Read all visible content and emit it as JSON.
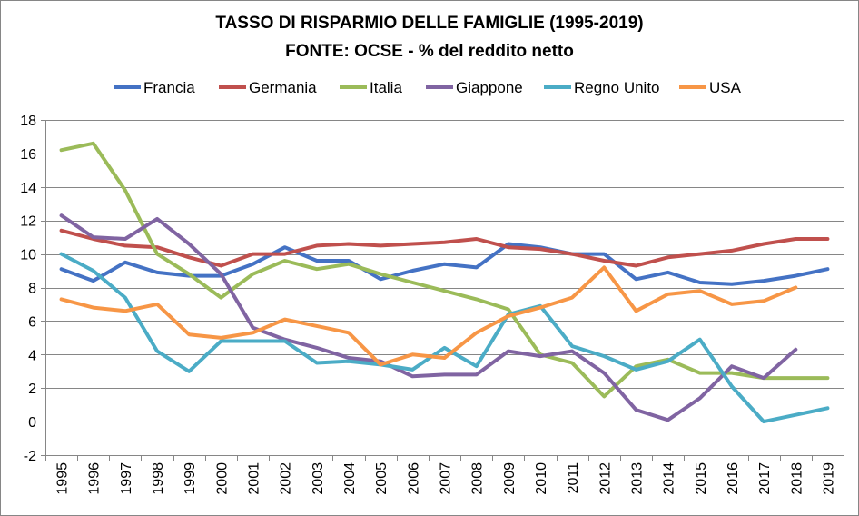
{
  "chart_data": {
    "type": "line",
    "title": "TASSO DI RISPARMIO DELLE FAMIGLIE (1995-2019)",
    "subtitle": "FONTE: OCSE - % del reddito netto",
    "xlabel": "",
    "ylabel": "",
    "ylim": [
      -2,
      18
    ],
    "yticks": [
      "-2",
      "0",
      "2",
      "4",
      "6",
      "8",
      "10",
      "12",
      "14",
      "16",
      "18"
    ],
    "grid": true,
    "legend_position": "top",
    "categories": [
      "1995",
      "1996",
      "1997",
      "1998",
      "1999",
      "2000",
      "2001",
      "2002",
      "2003",
      "2004",
      "2005",
      "2006",
      "2007",
      "2008",
      "2009",
      "2010",
      "2011",
      "2012",
      "2013",
      "2014",
      "2015",
      "2016",
      "2017",
      "2018",
      "2019"
    ],
    "series": [
      {
        "name": "Francia",
        "color": "#4472C4",
        "values": [
          9.1,
          8.4,
          9.5,
          8.9,
          8.7,
          8.7,
          9.4,
          10.4,
          9.6,
          9.6,
          8.5,
          9.0,
          9.4,
          9.2,
          10.6,
          10.4,
          10.0,
          10.0,
          8.5,
          8.9,
          8.3,
          8.2,
          8.4,
          8.7,
          9.1
        ]
      },
      {
        "name": "Germania",
        "color": "#C0504D",
        "values": [
          11.4,
          10.9,
          10.5,
          10.4,
          9.8,
          9.3,
          10.0,
          10.0,
          10.5,
          10.6,
          10.5,
          10.6,
          10.7,
          10.9,
          10.4,
          10.3,
          10.0,
          9.6,
          9.3,
          9.8,
          10.0,
          10.2,
          10.6,
          10.9,
          10.9
        ]
      },
      {
        "name": "Italia",
        "color": "#9BBB59",
        "values": [
          16.2,
          16.6,
          13.8,
          10.0,
          8.8,
          7.4,
          8.8,
          9.6,
          9.1,
          9.4,
          8.8,
          8.3,
          7.8,
          7.3,
          6.7,
          4.0,
          3.5,
          1.5,
          3.3,
          3.7,
          2.9,
          2.9,
          2.6,
          2.6,
          2.6
        ]
      },
      {
        "name": "Giappone",
        "color": "#8064A2",
        "values": [
          12.3,
          11.0,
          10.9,
          12.1,
          10.6,
          8.8,
          5.6,
          4.9,
          4.4,
          3.8,
          3.6,
          2.7,
          2.8,
          2.8,
          4.2,
          3.9,
          4.2,
          2.9,
          0.7,
          0.1,
          1.4,
          3.3,
          2.6,
          4.3,
          null
        ]
      },
      {
        "name": "Regno Unito",
        "color": "#4BACC6",
        "values": [
          10.0,
          9.0,
          7.4,
          4.2,
          3.0,
          4.8,
          4.8,
          4.8,
          3.5,
          3.6,
          3.4,
          3.1,
          4.4,
          3.3,
          6.4,
          6.9,
          4.5,
          3.9,
          3.1,
          3.6,
          4.9,
          2.1,
          0.0,
          0.4,
          0.8
        ]
      },
      {
        "name": "USA",
        "color": "#F79646",
        "values": [
          7.3,
          6.8,
          6.6,
          7.0,
          5.2,
          5.0,
          5.3,
          6.1,
          5.7,
          5.3,
          3.4,
          4.0,
          3.8,
          5.3,
          6.3,
          6.8,
          7.4,
          9.2,
          6.6,
          7.6,
          7.8,
          7.0,
          7.2,
          8.0,
          null
        ]
      }
    ]
  }
}
